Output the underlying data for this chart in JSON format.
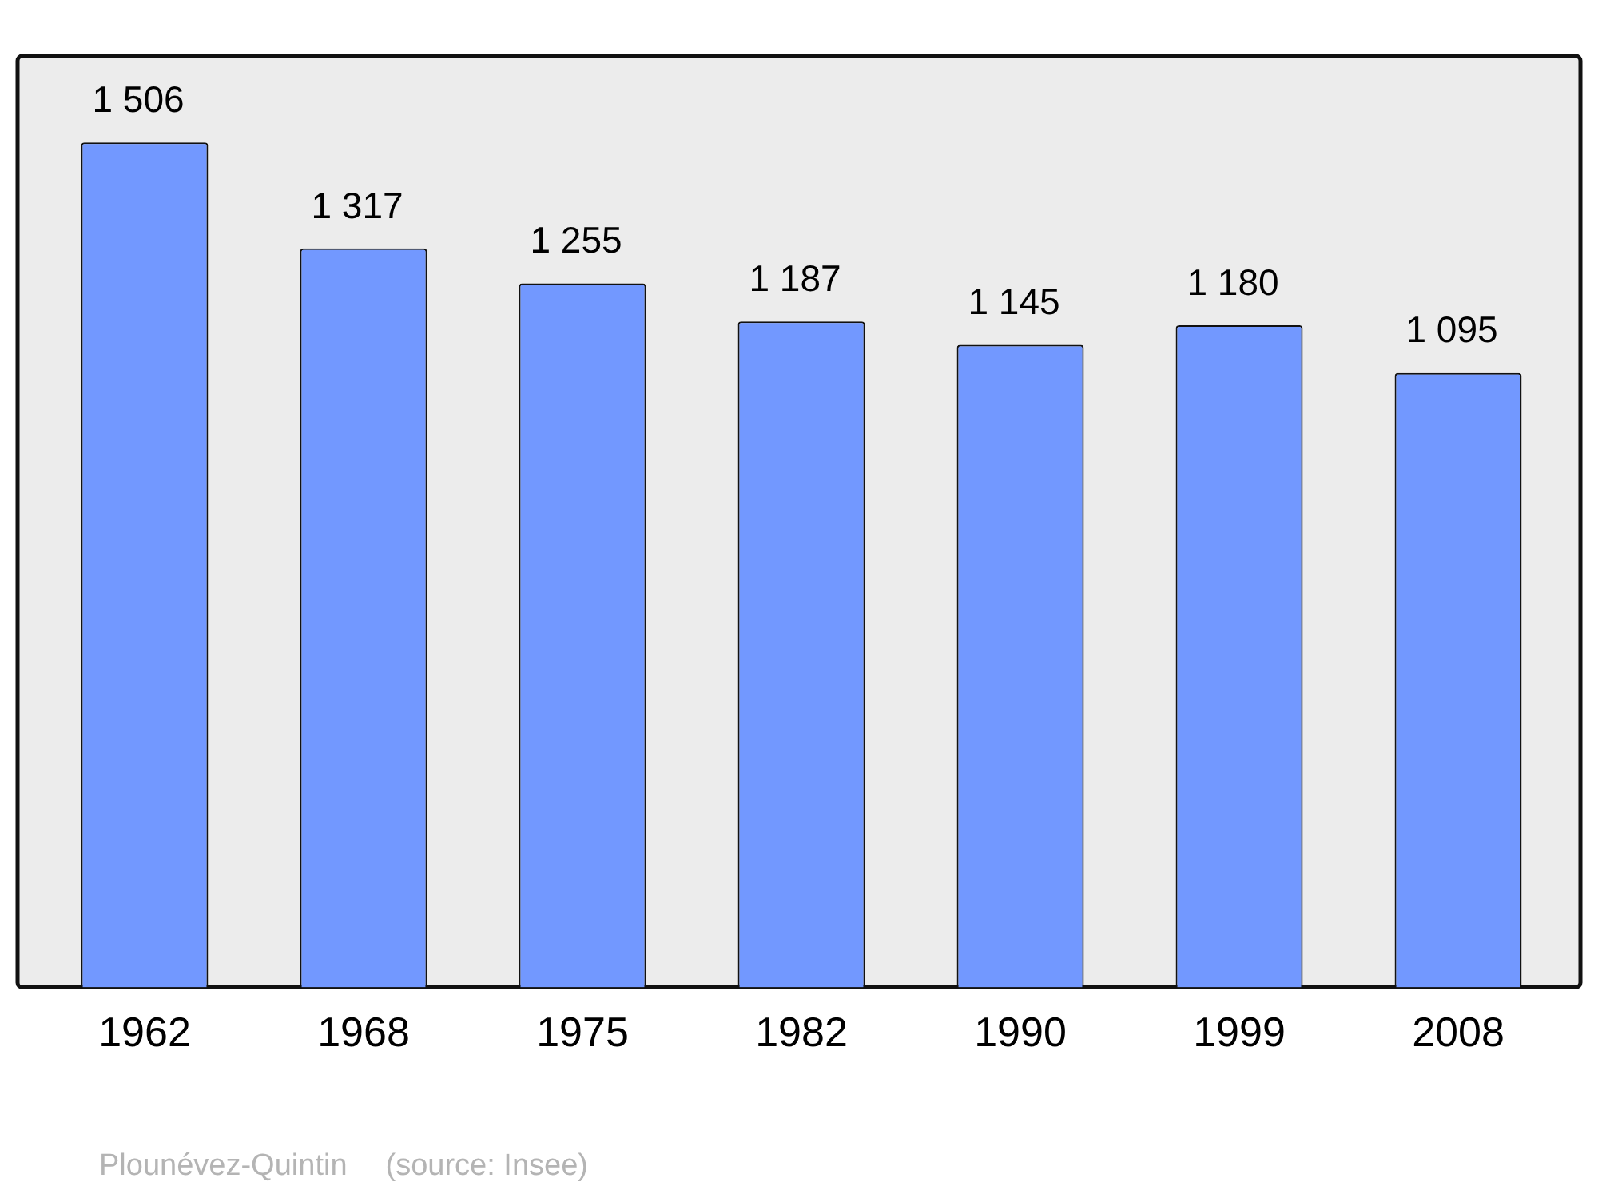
{
  "chart_data": {
    "type": "bar",
    "categories": [
      "1962",
      "1968",
      "1975",
      "1982",
      "1990",
      "1999",
      "2008"
    ],
    "values": [
      1506,
      1317,
      1255,
      1187,
      1145,
      1180,
      1095
    ],
    "value_labels": [
      "1 506",
      "1 317",
      "1 255",
      "1 187",
      "1 145",
      "1 180",
      "1 095"
    ],
    "color": "#7298ff",
    "ylim": [
      0,
      1660
    ],
    "grid": false,
    "legend": false,
    "annotations": [
      "Plounévez-Quintin",
      "(source: Insee)"
    ]
  }
}
